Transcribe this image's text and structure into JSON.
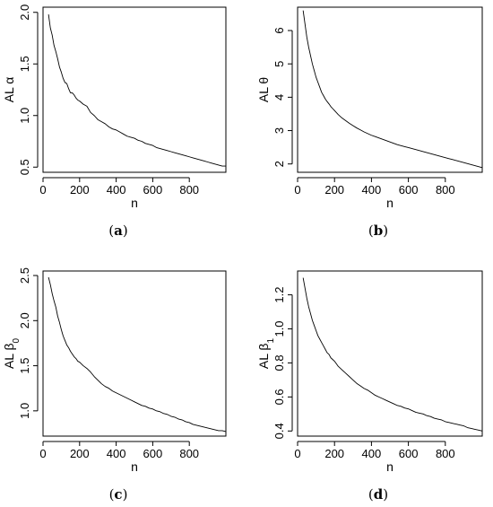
{
  "chart_data": [
    {
      "panel": "(a)",
      "type": "line",
      "xlabel": "n",
      "ylabel": "AL α",
      "ylabel_sub": "",
      "xlim": [
        0,
        1000
      ],
      "ylim": [
        0.45,
        2.05
      ],
      "xticks": [
        0,
        200,
        400,
        600,
        800
      ],
      "yticks": [
        0.5,
        1.0,
        1.5,
        2.0
      ],
      "ytick_labels": [
        "0.5",
        "1.0",
        "1.5",
        "2.0"
      ],
      "grid": false,
      "series": [
        {
          "x": [
            30,
            40,
            50,
            60,
            70,
            80,
            90,
            100,
            110,
            120,
            130,
            140,
            150,
            160,
            170,
            180,
            190,
            200,
            220,
            240,
            260,
            280,
            300,
            320,
            340,
            360,
            380,
            400,
            420,
            440,
            460,
            480,
            500,
            520,
            540,
            560,
            580,
            600,
            620,
            640,
            660,
            680,
            700,
            720,
            740,
            760,
            780,
            800,
            820,
            840,
            860,
            880,
            900,
            920,
            940,
            960,
            980,
            1000
          ],
          "y": [
            1.98,
            1.85,
            1.78,
            1.68,
            1.62,
            1.55,
            1.47,
            1.42,
            1.36,
            1.32,
            1.31,
            1.26,
            1.22,
            1.22,
            1.2,
            1.17,
            1.15,
            1.14,
            1.11,
            1.09,
            1.03,
            1.0,
            0.96,
            0.94,
            0.92,
            0.89,
            0.87,
            0.86,
            0.84,
            0.82,
            0.8,
            0.79,
            0.78,
            0.76,
            0.75,
            0.73,
            0.72,
            0.71,
            0.69,
            0.68,
            0.67,
            0.66,
            0.65,
            0.64,
            0.63,
            0.62,
            0.61,
            0.6,
            0.59,
            0.58,
            0.57,
            0.56,
            0.55,
            0.54,
            0.53,
            0.52,
            0.51,
            0.51
          ]
        }
      ]
    },
    {
      "panel": "(b)",
      "type": "line",
      "xlabel": "n",
      "ylabel": "AL θ",
      "ylabel_sub": "",
      "xlim": [
        0,
        1000
      ],
      "ylim": [
        1.75,
        6.7
      ],
      "xticks": [
        0,
        200,
        400,
        600,
        800
      ],
      "yticks": [
        2,
        3,
        4,
        5,
        6
      ],
      "ytick_labels": [
        "2",
        "3",
        "4",
        "5",
        "6"
      ],
      "grid": false,
      "series": [
        {
          "x": [
            30,
            40,
            50,
            60,
            70,
            80,
            90,
            100,
            110,
            120,
            130,
            140,
            150,
            160,
            170,
            180,
            190,
            200,
            220,
            240,
            260,
            280,
            300,
            320,
            340,
            360,
            380,
            400,
            420,
            440,
            460,
            480,
            500,
            520,
            540,
            560,
            580,
            600,
            620,
            640,
            660,
            680,
            700,
            720,
            740,
            760,
            780,
            800,
            820,
            840,
            860,
            880,
            900,
            920,
            940,
            960,
            980,
            1000
          ],
          "y": [
            6.6,
            6.2,
            5.8,
            5.5,
            5.25,
            5.0,
            4.8,
            4.6,
            4.45,
            4.3,
            4.15,
            4.05,
            3.95,
            3.87,
            3.8,
            3.72,
            3.66,
            3.6,
            3.48,
            3.38,
            3.3,
            3.22,
            3.15,
            3.08,
            3.02,
            2.96,
            2.91,
            2.86,
            2.82,
            2.78,
            2.74,
            2.7,
            2.66,
            2.62,
            2.58,
            2.55,
            2.52,
            2.49,
            2.46,
            2.43,
            2.4,
            2.37,
            2.34,
            2.31,
            2.28,
            2.25,
            2.22,
            2.19,
            2.16,
            2.13,
            2.1,
            2.07,
            2.04,
            2.01,
            1.98,
            1.95,
            1.92,
            1.89
          ]
        }
      ]
    },
    {
      "panel": "(c)",
      "type": "line",
      "xlabel": "n",
      "ylabel": "AL β",
      "ylabel_sub": "0",
      "xlim": [
        0,
        1000
      ],
      "ylim": [
        0.72,
        2.55
      ],
      "xticks": [
        0,
        200,
        400,
        600,
        800
      ],
      "yticks": [
        1.0,
        1.5,
        2.0,
        2.5
      ],
      "ytick_labels": [
        "1.0",
        "1.5",
        "2.0",
        "2.5"
      ],
      "grid": false,
      "series": [
        {
          "x": [
            30,
            40,
            50,
            60,
            70,
            80,
            90,
            100,
            110,
            120,
            130,
            140,
            150,
            160,
            170,
            180,
            190,
            200,
            220,
            240,
            260,
            280,
            300,
            320,
            340,
            360,
            380,
            400,
            420,
            440,
            460,
            480,
            500,
            520,
            540,
            560,
            580,
            600,
            620,
            640,
            660,
            680,
            700,
            720,
            740,
            760,
            780,
            800,
            820,
            840,
            860,
            880,
            900,
            920,
            940,
            960,
            980,
            1000
          ],
          "y": [
            2.48,
            2.4,
            2.3,
            2.22,
            2.15,
            2.05,
            1.98,
            1.9,
            1.83,
            1.78,
            1.73,
            1.7,
            1.66,
            1.63,
            1.6,
            1.58,
            1.55,
            1.54,
            1.5,
            1.47,
            1.43,
            1.38,
            1.34,
            1.3,
            1.27,
            1.25,
            1.22,
            1.2,
            1.18,
            1.16,
            1.14,
            1.12,
            1.1,
            1.08,
            1.06,
            1.05,
            1.03,
            1.02,
            1.0,
            0.99,
            0.97,
            0.96,
            0.94,
            0.93,
            0.91,
            0.9,
            0.88,
            0.87,
            0.85,
            0.84,
            0.83,
            0.82,
            0.81,
            0.8,
            0.79,
            0.78,
            0.78,
            0.77
          ]
        }
      ]
    },
    {
      "panel": "(d)",
      "type": "line",
      "xlabel": "n",
      "ylabel": "AL β",
      "ylabel_sub": "1",
      "xlim": [
        0,
        1000
      ],
      "ylim": [
        0.37,
        1.34
      ],
      "xticks": [
        0,
        200,
        400,
        600,
        800
      ],
      "yticks": [
        0.4,
        0.6,
        0.8,
        1.0,
        1.2
      ],
      "ytick_labels": [
        "0.4",
        "0.6",
        "0.8",
        "1.0",
        "1.2"
      ],
      "grid": false,
      "series": [
        {
          "x": [
            30,
            40,
            50,
            60,
            70,
            80,
            90,
            100,
            110,
            120,
            130,
            140,
            150,
            160,
            170,
            180,
            190,
            200,
            220,
            240,
            260,
            280,
            300,
            320,
            340,
            360,
            380,
            400,
            420,
            440,
            460,
            480,
            500,
            520,
            540,
            560,
            580,
            600,
            620,
            640,
            660,
            680,
            700,
            720,
            740,
            760,
            780,
            800,
            820,
            840,
            860,
            880,
            900,
            920,
            940,
            960,
            980,
            1000
          ],
          "y": [
            1.3,
            1.24,
            1.18,
            1.13,
            1.09,
            1.05,
            1.02,
            0.99,
            0.96,
            0.94,
            0.92,
            0.9,
            0.88,
            0.86,
            0.85,
            0.83,
            0.82,
            0.81,
            0.78,
            0.76,
            0.74,
            0.72,
            0.7,
            0.68,
            0.665,
            0.65,
            0.64,
            0.625,
            0.61,
            0.6,
            0.59,
            0.58,
            0.57,
            0.56,
            0.55,
            0.545,
            0.535,
            0.53,
            0.52,
            0.51,
            0.505,
            0.5,
            0.49,
            0.485,
            0.475,
            0.47,
            0.465,
            0.455,
            0.45,
            0.445,
            0.44,
            0.435,
            0.43,
            0.42,
            0.415,
            0.41,
            0.405,
            0.4
          ]
        }
      ]
    }
  ]
}
